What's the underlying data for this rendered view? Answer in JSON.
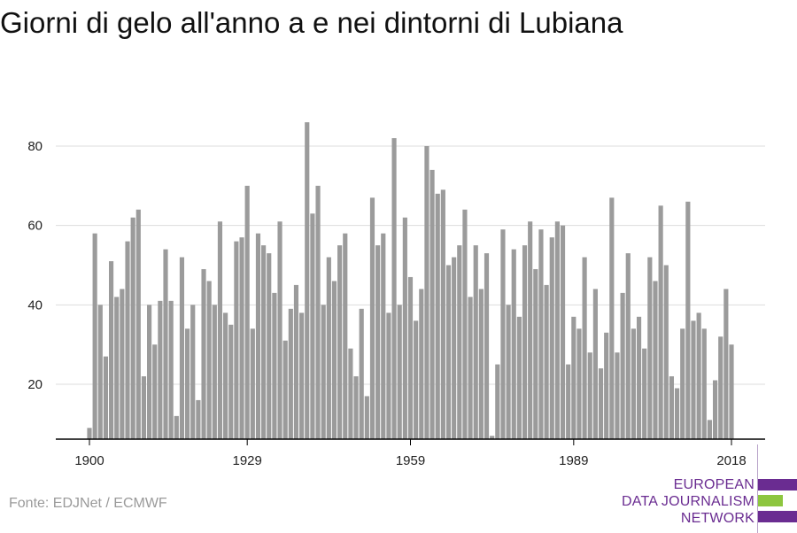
{
  "title": "Giorni di gelo all'anno a e nei dintorni di Lubiana",
  "source": "Fonte: EDJNet / ECMWF",
  "logo": {
    "lines": [
      "EUROPEAN",
      "DATA JOURNALISM",
      "NETWORK"
    ],
    "colors": {
      "purple": "#6a2c91",
      "green": "#8dc63f"
    }
  },
  "colors": {
    "bar": "#9b9b9b",
    "grid": "#dddddd",
    "axis": "#000000",
    "title": "#111111",
    "source": "#9a9a9a"
  },
  "chart_data": {
    "type": "bar",
    "title": "Giorni di gelo all'anno a e nei dintorni di Lubiana",
    "xlabel": "",
    "ylabel": "",
    "x_ticks": [
      1900,
      1929,
      1959,
      1989,
      2018
    ],
    "y_ticks": [
      20,
      40,
      60,
      80
    ],
    "ylim": [
      6,
      88
    ],
    "grid": "horizontal",
    "x": [
      1900,
      1901,
      1902,
      1903,
      1904,
      1905,
      1906,
      1907,
      1908,
      1909,
      1910,
      1911,
      1912,
      1913,
      1914,
      1915,
      1916,
      1917,
      1918,
      1919,
      1920,
      1921,
      1922,
      1923,
      1924,
      1925,
      1926,
      1927,
      1928,
      1929,
      1930,
      1931,
      1932,
      1933,
      1934,
      1935,
      1936,
      1937,
      1938,
      1939,
      1940,
      1941,
      1942,
      1943,
      1944,
      1945,
      1946,
      1947,
      1948,
      1949,
      1950,
      1951,
      1952,
      1953,
      1954,
      1955,
      1956,
      1957,
      1958,
      1959,
      1960,
      1961,
      1962,
      1963,
      1964,
      1965,
      1966,
      1967,
      1968,
      1969,
      1970,
      1971,
      1972,
      1973,
      1974,
      1975,
      1976,
      1977,
      1978,
      1979,
      1980,
      1981,
      1982,
      1983,
      1984,
      1985,
      1986,
      1987,
      1988,
      1989,
      1990,
      1991,
      1992,
      1993,
      1994,
      1995,
      1996,
      1997,
      1998,
      1999,
      2000,
      2001,
      2002,
      2003,
      2004,
      2005,
      2006,
      2007,
      2008,
      2009,
      2010,
      2011,
      2012,
      2013,
      2014,
      2015,
      2016,
      2017,
      2018
    ],
    "values": [
      9,
      58,
      40,
      27,
      51,
      42,
      44,
      56,
      62,
      64,
      22,
      40,
      30,
      41,
      54,
      41,
      12,
      52,
      34,
      40,
      16,
      49,
      46,
      40,
      61,
      38,
      35,
      56,
      57,
      70,
      34,
      58,
      55,
      53,
      43,
      61,
      31,
      39,
      45,
      38,
      86,
      63,
      70,
      40,
      52,
      46,
      55,
      58,
      29,
      22,
      39,
      17,
      67,
      55,
      58,
      38,
      82,
      40,
      62,
      47,
      36,
      44,
      80,
      74,
      68,
      69,
      50,
      52,
      55,
      64,
      42,
      55,
      44,
      53,
      7,
      25,
      59,
      40,
      54,
      37,
      55,
      61,
      49,
      59,
      45,
      57,
      61,
      60,
      25,
      37,
      34,
      52,
      28,
      44,
      24,
      33,
      67,
      28,
      43,
      53,
      34,
      37,
      29,
      52,
      46,
      65,
      50,
      22,
      19,
      34,
      66,
      36,
      38,
      34,
      11,
      21,
      32,
      44,
      30
    ]
  }
}
